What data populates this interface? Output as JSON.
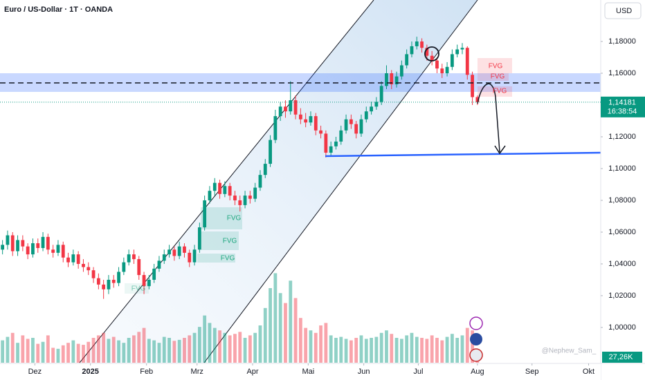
{
  "chart_data": {
    "type": "candlestick",
    "title": "Euro / US-Dollar · 1T · OANDA",
    "currency": "USD",
    "watermark": "@Nephew_Sam_",
    "up_color": "#089981",
    "down_color": "#f23645",
    "xlim": [
      -0.5,
      118.4
    ],
    "xticks": [
      {
        "value": 6.4,
        "label": "Dez"
      },
      {
        "value": 17.4,
        "label": "2025"
      },
      {
        "value": 28.5,
        "label": "Feb"
      },
      {
        "value": 38.5,
        "label": "Mrz"
      },
      {
        "value": 49.5,
        "label": "Apr"
      },
      {
        "value": 60.5,
        "label": "Mai"
      },
      {
        "value": 71.5,
        "label": "Jun"
      },
      {
        "value": 82.3,
        "label": "Jul"
      },
      {
        "value": 94,
        "label": "Aug"
      },
      {
        "value": 104.8,
        "label": "Sep"
      },
      {
        "value": 116,
        "label": "Okt"
      }
    ],
    "ylim": [
      0.9778,
      1.2061
    ],
    "yticks": [
      {
        "value": 1.18,
        "label": "1,18000"
      },
      {
        "value": 1.16,
        "label": "1,16000"
      },
      {
        "value": 1.14,
        "label": "1,14000"
      },
      {
        "value": 1.12,
        "label": "1,12000"
      },
      {
        "value": 1.1,
        "label": "1,10000"
      },
      {
        "value": 1.08,
        "label": "1,08000"
      },
      {
        "value": 1.06,
        "label": "1,06000"
      },
      {
        "value": 1.04,
        "label": "1,04000"
      },
      {
        "value": 1.02,
        "label": "1,02000"
      },
      {
        "value": 1.0,
        "label": "1,00000"
      }
    ],
    "last_price": {
      "value": 1.14181,
      "label": "1,14181",
      "countdown": "16:38:54"
    },
    "candles": {
      "open": [
        1.049,
        1.052,
        1.058,
        1.048,
        1.055,
        1.051,
        1.046,
        1.053,
        1.05,
        1.057,
        1.049,
        1.047,
        1.052,
        1.044,
        1.041,
        1.046,
        1.04,
        1.038,
        1.036,
        1.031,
        1.027,
        1.024,
        1.03,
        1.028,
        1.035,
        1.041,
        1.046,
        1.043,
        1.033,
        1.026,
        1.03,
        1.037,
        1.042,
        1.046,
        1.049,
        1.045,
        1.051,
        1.047,
        1.041,
        1.049,
        1.063,
        1.08,
        1.086,
        1.091,
        1.084,
        1.089,
        1.083,
        1.08,
        1.077,
        1.083,
        1.081,
        1.088,
        1.096,
        1.103,
        1.118,
        1.133,
        1.139,
        1.136,
        1.143,
        1.134,
        1.131,
        1.129,
        1.133,
        1.124,
        1.122,
        1.11,
        1.114,
        1.117,
        1.124,
        1.131,
        1.128,
        1.122,
        1.131,
        1.136,
        1.139,
        1.142,
        1.152,
        1.16,
        1.153,
        1.158,
        1.165,
        1.172,
        1.177,
        1.18,
        1.176,
        1.171,
        1.168,
        1.163,
        1.16,
        1.164,
        1.172,
        1.175,
        1.176,
        1.159,
        1.145
      ],
      "high": [
        1.055,
        1.061,
        1.06,
        1.058,
        1.058,
        1.053,
        1.056,
        1.056,
        1.06,
        1.059,
        1.052,
        1.055,
        1.054,
        1.047,
        1.049,
        1.048,
        1.043,
        1.041,
        1.038,
        1.034,
        1.03,
        1.033,
        1.033,
        1.038,
        1.044,
        1.049,
        1.049,
        1.045,
        1.035,
        1.033,
        1.04,
        1.045,
        1.049,
        1.052,
        1.051,
        1.054,
        1.053,
        1.049,
        1.052,
        1.066,
        1.083,
        1.089,
        1.094,
        1.093,
        1.092,
        1.091,
        1.086,
        1.083,
        1.086,
        1.086,
        1.091,
        1.099,
        1.106,
        1.121,
        1.137,
        1.142,
        1.143,
        1.155,
        1.146,
        1.138,
        1.135,
        1.136,
        1.135,
        1.127,
        1.124,
        1.117,
        1.12,
        1.127,
        1.134,
        1.134,
        1.13,
        1.134,
        1.139,
        1.142,
        1.145,
        1.155,
        1.165,
        1.162,
        1.161,
        1.168,
        1.175,
        1.18,
        1.183,
        1.182,
        1.178,
        1.174,
        1.17,
        1.166,
        1.167,
        1.175,
        1.178,
        1.179,
        1.177,
        1.161,
        1.146
      ],
      "low": [
        1.046,
        1.049,
        1.045,
        1.045,
        1.048,
        1.043,
        1.044,
        1.047,
        1.048,
        1.046,
        1.044,
        1.045,
        1.041,
        1.038,
        1.039,
        1.037,
        1.035,
        1.033,
        1.028,
        1.024,
        1.018,
        1.021,
        1.025,
        1.026,
        1.033,
        1.039,
        1.04,
        1.03,
        1.021,
        1.024,
        1.028,
        1.035,
        1.04,
        1.044,
        1.042,
        1.043,
        1.044,
        1.038,
        1.039,
        1.047,
        1.061,
        1.078,
        1.083,
        1.081,
        1.082,
        1.08,
        1.077,
        1.073,
        1.075,
        1.078,
        1.079,
        1.086,
        1.094,
        1.101,
        1.116,
        1.13,
        1.132,
        1.134,
        1.131,
        1.128,
        1.126,
        1.127,
        1.121,
        1.119,
        1.107,
        1.108,
        1.112,
        1.115,
        1.122,
        1.125,
        1.119,
        1.12,
        1.129,
        1.134,
        1.137,
        1.14,
        1.15,
        1.15,
        1.151,
        1.156,
        1.163,
        1.17,
        1.175,
        1.173,
        1.168,
        1.165,
        1.16,
        1.157,
        1.158,
        1.162,
        1.17,
        1.172,
        1.156,
        1.14,
        1.14
      ],
      "close": [
        1.052,
        1.058,
        1.048,
        1.055,
        1.051,
        1.046,
        1.053,
        1.05,
        1.057,
        1.049,
        1.047,
        1.052,
        1.044,
        1.041,
        1.046,
        1.04,
        1.038,
        1.036,
        1.031,
        1.027,
        1.024,
        1.03,
        1.028,
        1.035,
        1.041,
        1.046,
        1.043,
        1.033,
        1.026,
        1.03,
        1.037,
        1.042,
        1.046,
        1.049,
        1.045,
        1.051,
        1.047,
        1.041,
        1.049,
        1.063,
        1.08,
        1.086,
        1.091,
        1.084,
        1.089,
        1.083,
        1.08,
        1.077,
        1.083,
        1.081,
        1.088,
        1.096,
        1.103,
        1.118,
        1.133,
        1.139,
        1.136,
        1.143,
        1.134,
        1.131,
        1.129,
        1.133,
        1.124,
        1.122,
        1.11,
        1.114,
        1.117,
        1.124,
        1.131,
        1.128,
        1.122,
        1.131,
        1.136,
        1.139,
        1.142,
        1.152,
        1.16,
        1.153,
        1.158,
        1.165,
        1.172,
        1.177,
        1.18,
        1.176,
        1.171,
        1.168,
        1.163,
        1.16,
        1.164,
        1.172,
        1.175,
        1.176,
        1.159,
        1.145,
        1.1418
      ]
    },
    "volume": {
      "vlim": [
        0,
        250
      ],
      "last_label": "27,26K",
      "values": [
        45,
        52,
        60,
        40,
        55,
        48,
        50,
        38,
        42,
        55,
        30,
        28,
        35,
        40,
        45,
        38,
        36,
        42,
        50,
        55,
        60,
        48,
        52,
        45,
        40,
        50,
        55,
        62,
        70,
        48,
        45,
        40,
        52,
        50,
        44,
        46,
        50,
        55,
        60,
        72,
        95,
        80,
        70,
        65,
        60,
        55,
        58,
        62,
        50,
        55,
        60,
        75,
        110,
        150,
        180,
        140,
        120,
        165,
        130,
        90,
        70,
        65,
        60,
        75,
        80,
        55,
        50,
        52,
        48,
        45,
        50,
        55,
        48,
        50,
        52,
        60,
        65,
        58,
        50,
        48,
        55,
        60,
        52,
        50,
        48,
        55,
        50,
        45,
        52,
        58,
        50,
        55,
        70,
        65,
        27.26
      ]
    },
    "annotations": [
      "FVG",
      "FVG",
      "FVG",
      "FVG",
      "FVG",
      "FVG",
      "FVG"
    ]
  }
}
